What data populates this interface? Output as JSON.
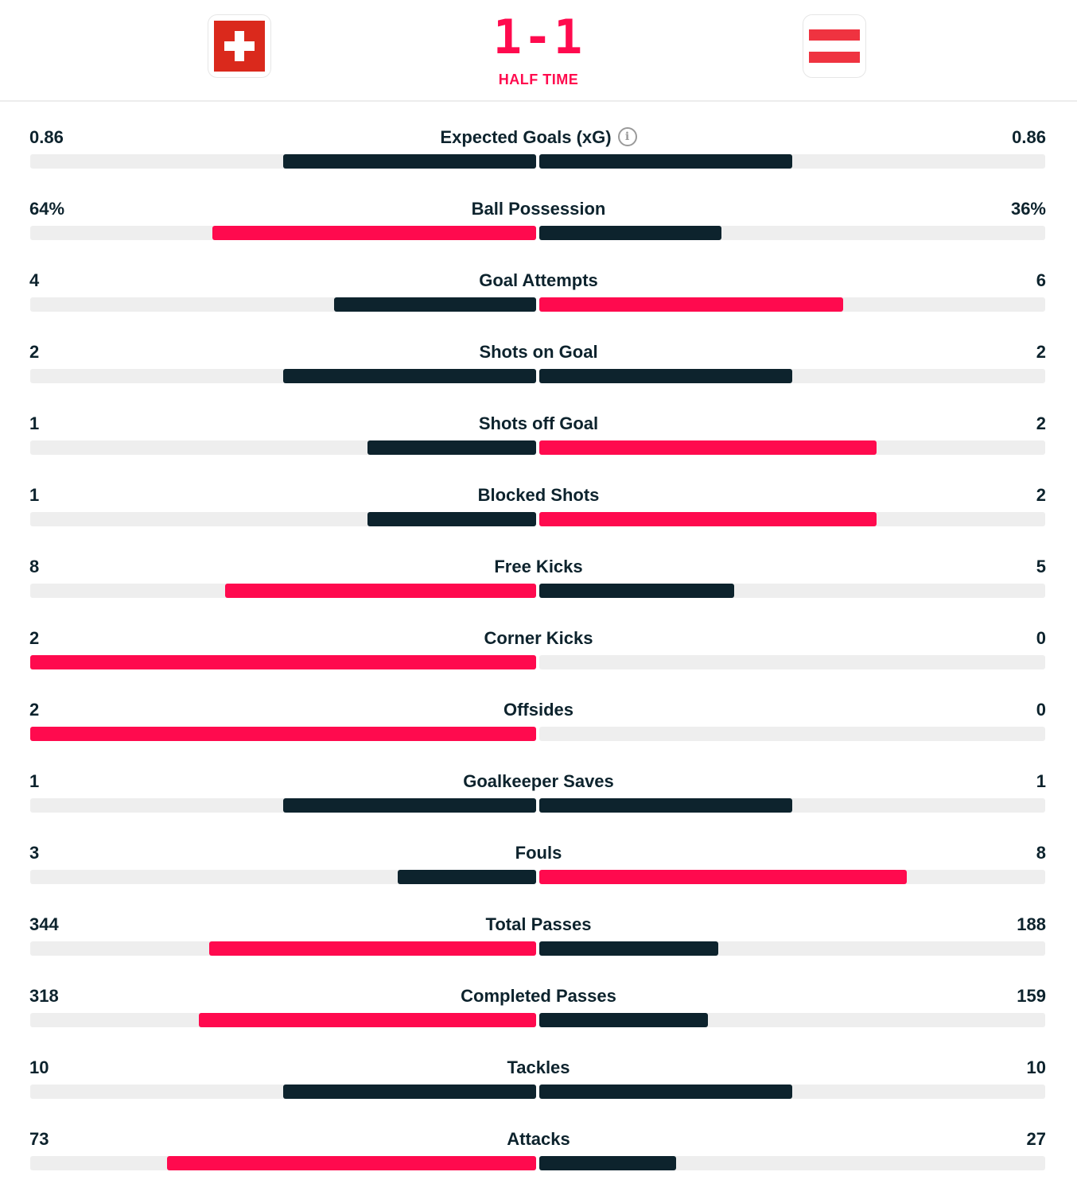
{
  "header": {
    "home_team_flag": "switzerland-flag",
    "away_team_flag": "austria-flag",
    "score": "1-1",
    "status": "HALF TIME"
  },
  "colors": {
    "accent": "#ff0a4e",
    "dark": "#0d232d",
    "track": "#eeeeee"
  },
  "stats": [
    {
      "label": "Expected Goals (xG)",
      "home": "0.86",
      "away": "0.86",
      "home_share": 0.5,
      "away_share": 0.5,
      "info_icon": true
    },
    {
      "label": "Ball Possession",
      "home": "64%",
      "away": "36%",
      "home_share": 0.64,
      "away_share": 0.36
    },
    {
      "label": "Goal Attempts",
      "home": "4",
      "away": "6",
      "home_share": 0.4,
      "away_share": 0.6
    },
    {
      "label": "Shots on Goal",
      "home": "2",
      "away": "2",
      "home_share": 0.5,
      "away_share": 0.5
    },
    {
      "label": "Shots off Goal",
      "home": "1",
      "away": "2",
      "home_share": 0.333,
      "away_share": 0.667
    },
    {
      "label": "Blocked Shots",
      "home": "1",
      "away": "2",
      "home_share": 0.333,
      "away_share": 0.667
    },
    {
      "label": "Free Kicks",
      "home": "8",
      "away": "5",
      "home_share": 0.615,
      "away_share": 0.385
    },
    {
      "label": "Corner Kicks",
      "home": "2",
      "away": "0",
      "home_share": 1.0,
      "away_share": 0.0
    },
    {
      "label": "Offsides",
      "home": "2",
      "away": "0",
      "home_share": 1.0,
      "away_share": 0.0
    },
    {
      "label": "Goalkeeper Saves",
      "home": "1",
      "away": "1",
      "home_share": 0.5,
      "away_share": 0.5
    },
    {
      "label": "Fouls",
      "home": "3",
      "away": "8",
      "home_share": 0.273,
      "away_share": 0.727
    },
    {
      "label": "Total Passes",
      "home": "344",
      "away": "188",
      "home_share": 0.647,
      "away_share": 0.353
    },
    {
      "label": "Completed Passes",
      "home": "318",
      "away": "159",
      "home_share": 0.667,
      "away_share": 0.333
    },
    {
      "label": "Tackles",
      "home": "10",
      "away": "10",
      "home_share": 0.5,
      "away_share": 0.5
    },
    {
      "label": "Attacks",
      "home": "73",
      "away": "27",
      "home_share": 0.73,
      "away_share": 0.27
    }
  ]
}
